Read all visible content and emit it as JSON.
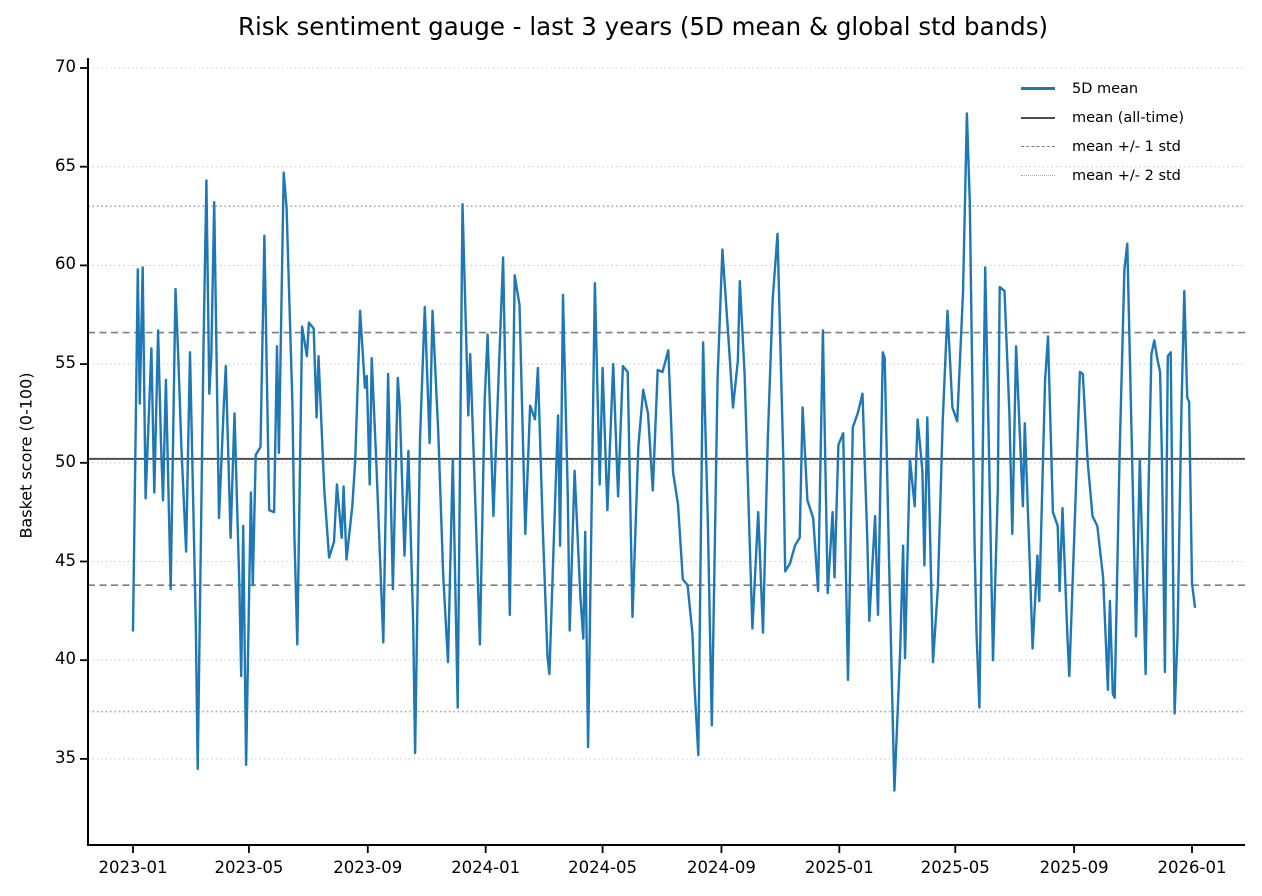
{
  "figure": {
    "title": "Risk sentiment gauge - last 3 years (5D mean & global std bands)",
    "ylabel": "Basket score (0-100)"
  },
  "chart_data": {
    "type": "line",
    "title": "Risk sentiment gauge - last 3 years (5D mean & global std bands)",
    "xlabel": "",
    "ylabel": "Basket score (0-100)",
    "x_start_date": "2023-01-01",
    "x_unit": "days since 2023-01-01",
    "x_tick_labels": [
      "2023-01",
      "2023-05",
      "2023-09",
      "2024-01",
      "2024-05",
      "2024-09",
      "2025-01",
      "2025-05",
      "2025-09",
      "2026-01"
    ],
    "x_tick_days": [
      0,
      120,
      243,
      365,
      486,
      609,
      731,
      851,
      974,
      1096
    ],
    "y_ticks": [
      35,
      40,
      45,
      50,
      55,
      60,
      65,
      70
    ],
    "y_range": [
      30.6,
      70.3
    ],
    "grid": {
      "horizontal": true,
      "vertical": false,
      "style": "dotted",
      "color": "#c9c9c9"
    },
    "legend_position": "upper right",
    "legend": [
      {
        "label": "5D mean",
        "color": "#1f77b4",
        "style": "solid",
        "width": 3.2
      },
      {
        "label": "mean (all-time)",
        "color": "#4d4d4d",
        "style": "solid",
        "width": 2
      },
      {
        "label": "mean +/- 1 std",
        "color": "#7f7f7f",
        "style": "dashed",
        "width": 1.6
      },
      {
        "label": "mean +/- 2 std",
        "color": "#a8a8a8",
        "style": "dotted",
        "width": 1.6
      }
    ],
    "stats": {
      "mean_all_time": 50.2,
      "std": 6.4,
      "mean_plus_1_std": 56.6,
      "mean_minus_1_std": 43.8,
      "mean_plus_2_std": 63.0,
      "mean_minus_2_std": 37.4
    },
    "reference_lines": [
      {
        "label": "mean (all-time)",
        "values": [
          50.2
        ],
        "style": "solid",
        "color": "#4d4d4d",
        "width": 2
      },
      {
        "label": "mean +/- 1 std",
        "values": [
          56.6,
          43.8
        ],
        "style": "dashed",
        "color": "#7f7f7f",
        "width": 1.6
      },
      {
        "label": "mean +/- 2 std",
        "values": [
          63.0,
          37.4
        ],
        "style": "dotted",
        "color": "#a8a8a8",
        "width": 1.6
      }
    ],
    "series": [
      {
        "name": "5D mean",
        "color": "#1f77b4",
        "width": 2.4,
        "points": [
          [
            0,
            41.5
          ],
          [
            5,
            59.8
          ],
          [
            7,
            53.0
          ],
          [
            10,
            59.9
          ],
          [
            13,
            48.2
          ],
          [
            19,
            55.8
          ],
          [
            22,
            48.5
          ],
          [
            26,
            56.7
          ],
          [
            29,
            51.0
          ],
          [
            31,
            48.1
          ],
          [
            34,
            54.2
          ],
          [
            39,
            43.6
          ],
          [
            44,
            58.8
          ],
          [
            47,
            55.2
          ],
          [
            50,
            50.9
          ],
          [
            55,
            45.5
          ],
          [
            59,
            55.6
          ],
          [
            65,
            41.8
          ],
          [
            67,
            34.5
          ],
          [
            70,
            45.0
          ],
          [
            73,
            55.9
          ],
          [
            76,
            64.3
          ],
          [
            79,
            53.5
          ],
          [
            81,
            55.4
          ],
          [
            84,
            63.2
          ],
          [
            89,
            47.2
          ],
          [
            94,
            52.9
          ],
          [
            96,
            54.9
          ],
          [
            101,
            46.2
          ],
          [
            105,
            52.5
          ],
          [
            110,
            43.9
          ],
          [
            112,
            39.2
          ],
          [
            114,
            46.8
          ],
          [
            117,
            34.7
          ],
          [
            122,
            48.5
          ],
          [
            124,
            43.8
          ],
          [
            127,
            50.4
          ],
          [
            132,
            50.8
          ],
          [
            136,
            61.5
          ],
          [
            141,
            47.6
          ],
          [
            146,
            47.5
          ],
          [
            149,
            55.9
          ],
          [
            151,
            50.5
          ],
          [
            156,
            64.7
          ],
          [
            159,
            62.9
          ],
          [
            165,
            53.0
          ],
          [
            167,
            46.3
          ],
          [
            170,
            40.8
          ],
          [
            175,
            56.9
          ],
          [
            180,
            55.4
          ],
          [
            182,
            57.1
          ],
          [
            187,
            56.8
          ],
          [
            190,
            52.3
          ],
          [
            192,
            55.4
          ],
          [
            198,
            48.6
          ],
          [
            203,
            45.2
          ],
          [
            208,
            46.0
          ],
          [
            211,
            48.9
          ],
          [
            216,
            46.2
          ],
          [
            218,
            48.8
          ],
          [
            221,
            45.1
          ],
          [
            227,
            47.8
          ],
          [
            230,
            50.1
          ],
          [
            235,
            57.7
          ],
          [
            240,
            53.8
          ],
          [
            242,
            54.4
          ],
          [
            245,
            48.9
          ],
          [
            247,
            55.3
          ],
          [
            252,
            49.8
          ],
          [
            259,
            40.9
          ],
          [
            264,
            54.5
          ],
          [
            269,
            43.6
          ],
          [
            274,
            54.3
          ],
          [
            276,
            52.9
          ],
          [
            281,
            45.3
          ],
          [
            285,
            50.6
          ],
          [
            290,
            41.8
          ],
          [
            292,
            35.3
          ],
          [
            297,
            51.2
          ],
          [
            302,
            57.9
          ],
          [
            307,
            51.0
          ],
          [
            310,
            57.7
          ],
          [
            316,
            51.5
          ],
          [
            321,
            44.3
          ],
          [
            326,
            39.9
          ],
          [
            331,
            50.2
          ],
          [
            336,
            37.6
          ],
          [
            341,
            63.1
          ],
          [
            347,
            52.4
          ],
          [
            349,
            55.5
          ],
          [
            354,
            48.5
          ],
          [
            359,
            40.8
          ],
          [
            364,
            53.2
          ],
          [
            367,
            56.5
          ],
          [
            373,
            47.3
          ],
          [
            378,
            53.8
          ],
          [
            383,
            60.4
          ],
          [
            390,
            42.3
          ],
          [
            395,
            59.5
          ],
          [
            400,
            58.0
          ],
          [
            406,
            46.4
          ],
          [
            411,
            52.9
          ],
          [
            416,
            52.2
          ],
          [
            419,
            54.8
          ],
          [
            424,
            46.8
          ],
          [
            429,
            40.2
          ],
          [
            431,
            39.3
          ],
          [
            437,
            48.2
          ],
          [
            440,
            52.4
          ],
          [
            442,
            45.8
          ],
          [
            445,
            58.5
          ],
          [
            450,
            48.3
          ],
          [
            452,
            41.5
          ],
          [
            457,
            49.6
          ],
          [
            463,
            43.2
          ],
          [
            466,
            41.1
          ],
          [
            468,
            46.5
          ],
          [
            471,
            35.6
          ],
          [
            478,
            59.1
          ],
          [
            483,
            48.9
          ],
          [
            486,
            54.8
          ],
          [
            491,
            47.6
          ],
          [
            497,
            55.0
          ],
          [
            502,
            48.3
          ],
          [
            507,
            54.9
          ],
          [
            512,
            54.6
          ],
          [
            517,
            42.2
          ],
          [
            523,
            50.8
          ],
          [
            528,
            53.7
          ],
          [
            533,
            52.5
          ],
          [
            538,
            48.6
          ],
          [
            543,
            54.7
          ],
          [
            548,
            54.6
          ],
          [
            554,
            55.7
          ],
          [
            559,
            49.5
          ],
          [
            564,
            47.9
          ],
          [
            569,
            44.1
          ],
          [
            574,
            43.8
          ],
          [
            579,
            41.3
          ],
          [
            581,
            38.8
          ],
          [
            585,
            35.2
          ],
          [
            590,
            56.1
          ],
          [
            595,
            46.9
          ],
          [
            599,
            36.7
          ],
          [
            605,
            54.3
          ],
          [
            610,
            60.8
          ],
          [
            616,
            56.5
          ],
          [
            621,
            52.8
          ],
          [
            626,
            55.2
          ],
          [
            628,
            59.2
          ],
          [
            633,
            54.5
          ],
          [
            638,
            46.3
          ],
          [
            641,
            41.6
          ],
          [
            647,
            47.5
          ],
          [
            652,
            41.4
          ],
          [
            657,
            51.2
          ],
          [
            662,
            58.3
          ],
          [
            667,
            61.6
          ],
          [
            673,
            50.2
          ],
          [
            675,
            44.5
          ],
          [
            680,
            44.9
          ],
          [
            685,
            45.8
          ],
          [
            690,
            46.2
          ],
          [
            693,
            52.8
          ],
          [
            698,
            48.1
          ],
          [
            704,
            47.2
          ],
          [
            709,
            43.5
          ],
          [
            714,
            56.7
          ],
          [
            719,
            43.4
          ],
          [
            724,
            47.5
          ],
          [
            726,
            44.2
          ],
          [
            730,
            50.9
          ],
          [
            735,
            51.5
          ],
          [
            740,
            39.0
          ],
          [
            745,
            51.8
          ],
          [
            750,
            52.5
          ],
          [
            755,
            53.5
          ],
          [
            760,
            46.1
          ],
          [
            762,
            42.0
          ],
          [
            768,
            47.3
          ],
          [
            771,
            42.3
          ],
          [
            776,
            55.6
          ],
          [
            778,
            55.3
          ],
          [
            783,
            43.8
          ],
          [
            788,
            33.4
          ],
          [
            794,
            40.5
          ],
          [
            797,
            45.8
          ],
          [
            799,
            40.1
          ],
          [
            804,
            50.2
          ],
          [
            809,
            47.8
          ],
          [
            812,
            52.2
          ],
          [
            817,
            49.6
          ],
          [
            819,
            44.8
          ],
          [
            822,
            52.3
          ],
          [
            828,
            39.9
          ],
          [
            833,
            43.7
          ],
          [
            838,
            52.1
          ],
          [
            843,
            57.7
          ],
          [
            848,
            52.8
          ],
          [
            853,
            52.1
          ],
          [
            859,
            58.6
          ],
          [
            863,
            67.7
          ],
          [
            866,
            63.2
          ],
          [
            871,
            45.8
          ],
          [
            873,
            41.4
          ],
          [
            876,
            37.6
          ],
          [
            882,
            59.9
          ],
          [
            886,
            50.2
          ],
          [
            890,
            40.0
          ],
          [
            895,
            48.6
          ],
          [
            897,
            58.9
          ],
          [
            902,
            58.7
          ],
          [
            907,
            52.5
          ],
          [
            910,
            46.4
          ],
          [
            914,
            55.9
          ],
          [
            921,
            47.8
          ],
          [
            923,
            52.0
          ],
          [
            928,
            45.0
          ],
          [
            931,
            40.6
          ],
          [
            936,
            45.3
          ],
          [
            938,
            43.0
          ],
          [
            944,
            54.2
          ],
          [
            947,
            56.4
          ],
          [
            952,
            47.5
          ],
          [
            957,
            46.8
          ],
          [
            959,
            43.5
          ],
          [
            962,
            47.7
          ],
          [
            967,
            41.2
          ],
          [
            969,
            39.2
          ],
          [
            975,
            47.5
          ],
          [
            980,
            54.6
          ],
          [
            983,
            54.5
          ],
          [
            988,
            50.1
          ],
          [
            993,
            47.3
          ],
          [
            998,
            46.8
          ],
          [
            1004,
            44.2
          ],
          [
            1009,
            38.5
          ],
          [
            1011,
            43.0
          ],
          [
            1014,
            38.3
          ],
          [
            1016,
            38.1
          ],
          [
            1021,
            50.2
          ],
          [
            1026,
            59.8
          ],
          [
            1029,
            61.1
          ],
          [
            1035,
            48.0
          ],
          [
            1038,
            41.2
          ],
          [
            1042,
            50.2
          ],
          [
            1045,
            44.8
          ],
          [
            1048,
            39.3
          ],
          [
            1051,
            48.6
          ],
          [
            1054,
            55.5
          ],
          [
            1057,
            56.2
          ],
          [
            1060,
            55.3
          ],
          [
            1063,
            54.6
          ],
          [
            1065,
            50.1
          ],
          [
            1068,
            39.4
          ],
          [
            1071,
            55.4
          ],
          [
            1074,
            55.6
          ],
          [
            1078,
            37.3
          ],
          [
            1081,
            41.2
          ],
          [
            1085,
            52.6
          ],
          [
            1088,
            58.7
          ],
          [
            1091,
            53.3
          ],
          [
            1093,
            53.1
          ],
          [
            1096,
            43.9
          ],
          [
            1099,
            42.7
          ]
        ]
      }
    ]
  }
}
